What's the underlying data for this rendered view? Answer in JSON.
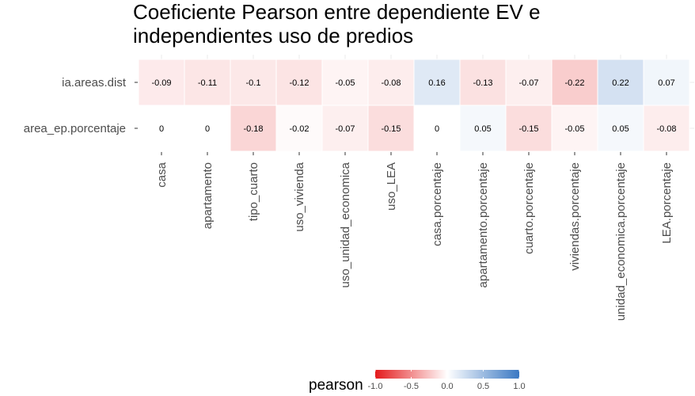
{
  "chart_data": {
    "type": "heatmap",
    "title_lines": [
      "Coeficiente Pearson entre dependiente EV e",
      "independientes uso de predios"
    ],
    "rows": [
      "ia.areas.dist",
      "area_ep.porcentaje"
    ],
    "columns": [
      "casa",
      "apartamento",
      "tipo_cuarto",
      "uso_vivienda",
      "uso_unidad_economica",
      "uso_LEA",
      "casa.porcentaje",
      "apartamento.porcentaje",
      "cuarto.porcentaje",
      "viviendas.porcentaje",
      "unidad_economica.porcentaje",
      "LEA.porcentaje"
    ],
    "values": [
      [
        -0.09,
        -0.11,
        -0.1,
        -0.12,
        -0.05,
        -0.08,
        0.16,
        -0.13,
        -0.07,
        -0.22,
        0.22,
        0.07
      ],
      [
        0,
        0,
        -0.18,
        -0.02,
        -0.07,
        -0.15,
        0,
        0.05,
        -0.15,
        -0.05,
        0.05,
        -0.08
      ]
    ],
    "labels": [
      [
        "-0.09",
        "-0.11",
        "-0.1",
        "-0.12",
        "-0.05",
        "-0.08",
        "0.16",
        "-0.13",
        "-0.07",
        "-0.22",
        "0.22",
        "0.07"
      ],
      [
        "0",
        "0",
        "-0.18",
        "-0.02",
        "-0.07",
        "-0.15",
        "0",
        "0.05",
        "-0.15",
        "-0.05",
        "0.05",
        "-0.08"
      ]
    ],
    "color_scale": {
      "low": "#e41a1c",
      "mid": "#ffffff",
      "high": "#3a78c3",
      "limits": [
        -1,
        1
      ]
    },
    "legend": {
      "title": "pearson",
      "position": "bottom",
      "ticks": [
        -1.0,
        -0.5,
        0.0,
        0.5,
        1.0
      ],
      "tick_labels": [
        "-1.0",
        "-0.5",
        "0.0",
        "0.5",
        "1.0"
      ]
    },
    "grid": true
  }
}
